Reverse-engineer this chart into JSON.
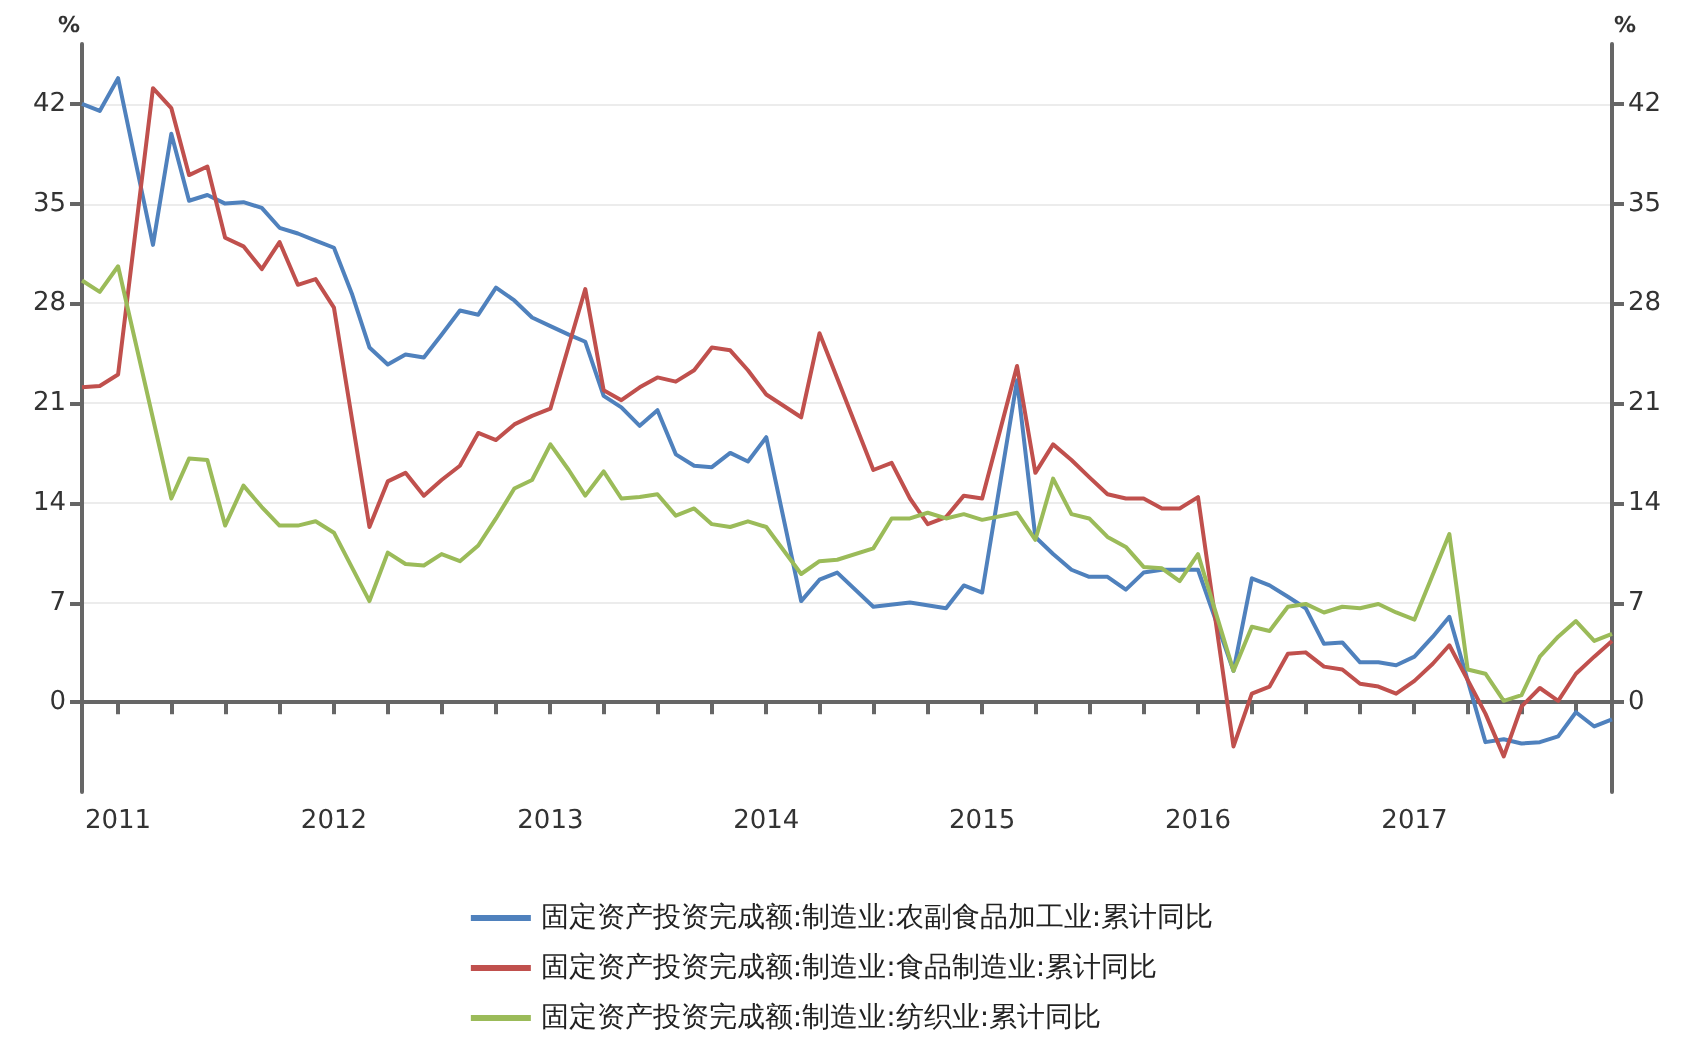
{
  "chart_data": {
    "type": "line",
    "ylabel": "%",
    "y2label": "%",
    "xlim": [
      "2010-11",
      "2017-12"
    ],
    "xticks": [
      "2011",
      {
        "value": "2011-04",
        "label": null
      },
      {
        "value": "2011-07",
        "label": null
      },
      {
        "value": "2011-10",
        "label": null
      },
      "2012",
      {
        "value": "2012-04",
        "label": null
      },
      {
        "value": "2012-07",
        "label": null
      },
      {
        "value": "2012-10",
        "label": null
      },
      "2013",
      {
        "value": "2013-04",
        "label": null
      },
      {
        "value": "2013-07",
        "label": null
      },
      {
        "value": "2013-10",
        "label": null
      },
      "2014",
      {
        "value": "2014-04",
        "label": null
      },
      {
        "value": "2014-07",
        "label": null
      },
      {
        "value": "2014-10",
        "label": null
      },
      "2015",
      {
        "value": "2015-04",
        "label": null
      },
      {
        "value": "2015-07",
        "label": null
      },
      {
        "value": "2015-10",
        "label": null
      },
      "2016",
      {
        "value": "2016-04",
        "label": null
      },
      {
        "value": "2016-07",
        "label": null
      },
      {
        "value": "2016-10",
        "label": null
      },
      "2017",
      {
        "value": "2017-04",
        "label": null
      },
      {
        "value": "2017-07",
        "label": null
      },
      {
        "value": "2017-10",
        "label": null
      }
    ],
    "ylim": [
      -6.3,
      46.2
    ],
    "yticks": [
      0,
      7,
      14,
      21,
      28,
      35,
      42
    ],
    "y2lim": [
      -6.3,
      46.2
    ],
    "y2ticks": [
      0,
      7,
      14,
      21,
      28,
      35,
      42
    ],
    "grid": "y",
    "legend": "bottom",
    "marker": "none",
    "line_style": "solid",
    "series": [
      {
        "name": "固定资产投资完成额:制造业:农副食品加工业:累计同比",
        "color": "#4f81bd",
        "x": [
          "2010-11",
          "2010-12",
          "2011-01",
          "2011-03",
          "2011-04",
          "2011-05",
          "2011-06",
          "2011-07",
          "2011-08",
          "2011-09",
          "2011-10",
          "2011-11",
          "2011-12",
          "2012-01",
          "2012-02",
          "2012-03",
          "2012-04",
          "2012-05",
          "2012-06",
          "2012-07",
          "2012-08",
          "2012-09",
          "2012-10",
          "2012-11",
          "2012-12",
          "2013-01",
          "2013-02",
          "2013-03",
          "2013-04",
          "2013-05",
          "2013-06",
          "2013-07",
          "2013-08",
          "2013-09",
          "2013-10",
          "2013-11",
          "2013-12",
          "2014-01",
          "2014-03",
          "2014-04",
          "2014-05",
          "2014-07",
          "2014-09",
          "2014-11",
          "2014-12",
          "2015-01",
          "2015-03",
          "2015-04",
          "2015-05",
          "2015-06",
          "2015-07",
          "2015-08",
          "2015-09",
          "2015-10",
          "2015-11",
          "2015-12",
          "2016-01",
          "2016-03",
          "2016-04",
          "2016-05",
          "2016-06",
          "2016-07",
          "2016-08",
          "2016-09",
          "2016-10",
          "2016-11",
          "2016-12",
          "2017-01",
          "2017-02",
          "2017-03",
          "2017-05",
          "2017-06",
          "2017-07",
          "2017-08",
          "2017-09",
          "2017-10",
          "2017-11",
          "2017-12"
        ],
        "values": [
          42,
          41.5,
          43.8,
          32.1,
          39.9,
          35.2,
          35.6,
          35,
          35.1,
          34.7,
          33.3,
          32.9,
          32.4,
          31.9,
          28.6,
          24.9,
          23.7,
          24.4,
          24.2,
          25.8,
          27.5,
          27.2,
          29.1,
          28.2,
          27,
          26.4,
          25.8,
          25.3,
          21.5,
          20.7,
          19.4,
          20.5,
          17.4,
          16.6,
          16.5,
          17.5,
          16.9,
          18.6,
          7.1,
          8.6,
          9.1,
          6.7,
          7,
          6.6,
          8.2,
          7.7,
          22.6,
          11.6,
          10.4,
          9.3,
          8.8,
          8.8,
          7.9,
          9.1,
          9.3,
          9.3,
          9.3,
          2.2,
          8.7,
          8.2,
          7.4,
          6.6,
          4.1,
          4.2,
          2.8,
          2.8,
          2.6,
          3.2,
          4.6,
          6,
          -2.8,
          -2.6,
          -2.9,
          -2.8,
          -2.4,
          -0.7,
          -1.7,
          -1.2
        ]
      },
      {
        "name": "固定资产投资完成额:制造业:食品制造业:累计同比",
        "color": "#c0504d",
        "x": [
          "2010-11",
          "2010-12",
          "2011-01",
          "2011-03",
          "2011-04",
          "2011-05",
          "2011-06",
          "2011-07",
          "2011-08",
          "2011-09",
          "2011-10",
          "2011-11",
          "2011-12",
          "2012-01",
          "2012-03",
          "2012-04",
          "2012-05",
          "2012-06",
          "2012-07",
          "2012-08",
          "2012-09",
          "2012-10",
          "2012-11",
          "2012-12",
          "2013-01",
          "2013-03",
          "2013-04",
          "2013-05",
          "2013-06",
          "2013-07",
          "2013-08",
          "2013-09",
          "2013-10",
          "2013-11",
          "2013-12",
          "2014-01",
          "2014-03",
          "2014-04",
          "2014-07",
          "2014-08",
          "2014-09",
          "2014-10",
          "2014-11",
          "2014-12",
          "2015-01",
          "2015-03",
          "2015-04",
          "2015-05",
          "2015-06",
          "2015-07",
          "2015-08",
          "2015-09",
          "2015-10",
          "2015-11",
          "2015-12",
          "2016-01",
          "2016-03",
          "2016-04",
          "2016-05",
          "2016-06",
          "2016-07",
          "2016-08",
          "2016-09",
          "2016-10",
          "2016-11",
          "2016-12",
          "2017-01",
          "2017-02",
          "2017-03",
          "2017-05",
          "2017-06",
          "2017-07",
          "2017-08",
          "2017-09",
          "2017-10",
          "2017-11",
          "2017-12"
        ],
        "values": [
          22.1,
          22.2,
          23,
          43.1,
          41.7,
          37,
          37.6,
          32.6,
          32,
          30.4,
          32.3,
          29.3,
          29.7,
          27.7,
          12.3,
          15.5,
          16.1,
          14.5,
          15.6,
          16.6,
          18.9,
          18.4,
          19.5,
          20.1,
          20.6,
          29,
          21.9,
          21.2,
          22.1,
          22.8,
          22.5,
          23.3,
          24.9,
          24.7,
          23.3,
          21.6,
          20,
          25.9,
          16.3,
          16.8,
          14.3,
          12.5,
          13,
          14.5,
          14.3,
          23.6,
          16.1,
          18.1,
          17,
          15.8,
          14.6,
          14.3,
          14.3,
          13.6,
          13.6,
          14.4,
          -3.1,
          0.6,
          1.1,
          3.4,
          3.5,
          2.5,
          2.3,
          1.3,
          1.1,
          0.6,
          1.5,
          2.7,
          4,
          -0.8,
          -3.8,
          -0.3,
          1,
          0.1,
          2,
          3.2,
          4.3
        ]
      },
      {
        "name": "固定资产投资完成额:制造业:纺织业:累计同比",
        "color": "#9bbb59",
        "x": [
          "2010-11",
          "2010-12",
          "2011-01",
          "2011-04",
          "2011-05",
          "2011-06",
          "2011-07",
          "2011-08",
          "2011-09",
          "2011-10",
          "2011-11",
          "2011-12",
          "2012-01",
          "2012-03",
          "2012-04",
          "2012-05",
          "2012-06",
          "2012-07",
          "2012-08",
          "2012-09",
          "2012-10",
          "2012-11",
          "2012-12",
          "2013-01",
          "2013-02",
          "2013-03",
          "2013-04",
          "2013-05",
          "2013-06",
          "2013-07",
          "2013-08",
          "2013-09",
          "2013-10",
          "2013-11",
          "2013-12",
          "2014-01",
          "2014-03",
          "2014-04",
          "2014-05",
          "2014-07",
          "2014-08",
          "2014-09",
          "2014-10",
          "2014-11",
          "2014-12",
          "2015-01",
          "2015-03",
          "2015-04",
          "2015-05",
          "2015-06",
          "2015-07",
          "2015-08",
          "2015-09",
          "2015-10",
          "2015-11",
          "2015-12",
          "2016-01",
          "2016-03",
          "2016-04",
          "2016-05",
          "2016-06",
          "2016-07",
          "2016-08",
          "2016-09",
          "2016-10",
          "2016-11",
          "2016-12",
          "2017-01",
          "2017-03",
          "2017-04",
          "2017-05",
          "2017-06",
          "2017-07",
          "2017-08",
          "2017-09",
          "2017-10",
          "2017-11",
          "2017-12"
        ],
        "values": [
          29.6,
          28.8,
          30.6,
          14.3,
          17.1,
          17,
          12.4,
          15.2,
          13.7,
          12.4,
          12.4,
          12.7,
          11.9,
          7.1,
          10.5,
          9.7,
          9.6,
          10.4,
          9.9,
          11,
          12.9,
          15,
          15.6,
          18.1,
          16.3,
          14.5,
          16.2,
          14.3,
          14.4,
          14.6,
          13.1,
          13.6,
          12.5,
          12.3,
          12.7,
          12.3,
          9,
          9.9,
          10,
          10.8,
          12.9,
          12.9,
          13.3,
          12.9,
          13.2,
          12.8,
          13.3,
          11.4,
          15.7,
          13.2,
          12.9,
          11.6,
          10.9,
          9.5,
          9.4,
          8.5,
          10.4,
          2.2,
          5.3,
          5,
          6.7,
          6.9,
          6.3,
          6.7,
          6.6,
          6.9,
          6.3,
          5.8,
          11.8,
          2.3,
          2,
          0.1,
          0.5,
          3.2,
          4.6,
          5.7,
          4.3,
          4.8
        ]
      }
    ]
  }
}
